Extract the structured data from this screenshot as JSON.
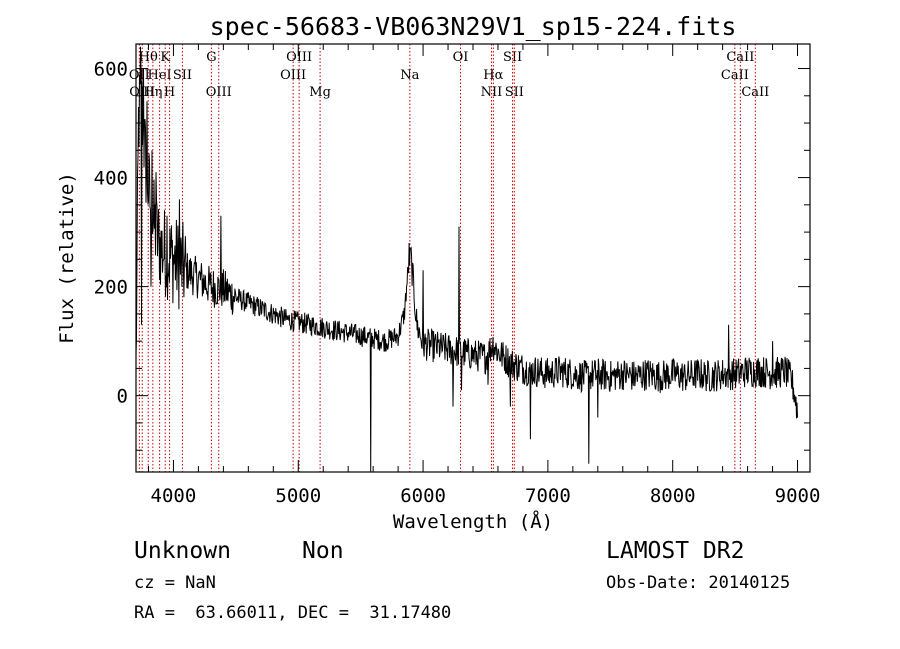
{
  "chart_data": {
    "type": "line",
    "title": "spec-56683-VB063N29V1_sp15-224.fits",
    "xlabel": "Wavelength (Å)",
    "ylabel": "Flux (relative)",
    "xlim": [
      3700,
      9100
    ],
    "ylim": [
      -140,
      645
    ],
    "x_ticks": [
      4000,
      5000,
      6000,
      7000,
      8000,
      9000
    ],
    "y_ticks": [
      0,
      200,
      400,
      600
    ],
    "grid": false,
    "line_color": "#000000",
    "marker_color": "#cc0000",
    "spectrum_anchors": {
      "x": [
        3700,
        3720,
        3740,
        3760,
        3780,
        3800,
        3830,
        3870,
        3900,
        3950,
        4000,
        4050,
        4100,
        4200,
        4300,
        4400,
        4500,
        4600,
        4700,
        4800,
        4900,
        5000,
        5100,
        5200,
        5300,
        5400,
        5500,
        5600,
        5700,
        5800,
        5850,
        5880,
        5900,
        5920,
        5950,
        6000,
        6100,
        6200,
        6300,
        6400,
        6500,
        6560,
        6600,
        6700,
        6800,
        6900,
        7000,
        7100,
        7200,
        7300,
        7400,
        7500,
        7600,
        7700,
        7800,
        7900,
        8000,
        8100,
        8200,
        8300,
        8400,
        8500,
        8600,
        8700,
        8800,
        8900,
        8950,
        8980,
        9000
      ],
      "y": [
        50,
        500,
        560,
        480,
        420,
        380,
        330,
        290,
        270,
        260,
        250,
        240,
        230,
        215,
        200,
        195,
        180,
        170,
        160,
        150,
        140,
        135,
        130,
        125,
        120,
        115,
        110,
        105,
        100,
        110,
        150,
        230,
        260,
        210,
        130,
        95,
        90,
        85,
        80,
        75,
        70,
        95,
        80,
        60,
        50,
        45,
        40,
        45,
        40,
        35,
        40,
        35,
        40,
        35,
        40,
        35,
        40,
        35,
        40,
        35,
        40,
        40,
        45,
        45,
        40,
        45,
        30,
        0,
        -30
      ]
    },
    "spectrum_spikes": [
      {
        "x": 3735,
        "y": 640
      },
      {
        "x": 3745,
        "y": 130
      },
      {
        "x": 3760,
        "y": 600
      },
      {
        "x": 3790,
        "y": 540
      },
      {
        "x": 3820,
        "y": 200
      },
      {
        "x": 3830,
        "y": 450
      },
      {
        "x": 3860,
        "y": 410
      },
      {
        "x": 3950,
        "y": 330
      },
      {
        "x": 4050,
        "y": 360
      },
      {
        "x": 4380,
        "y": 330
      },
      {
        "x": 5580,
        "y": -140
      },
      {
        "x": 5890,
        "y": 280
      },
      {
        "x": 6000,
        "y": 230
      },
      {
        "x": 6240,
        "y": -20
      },
      {
        "x": 6290,
        "y": 310
      },
      {
        "x": 6310,
        "y": 10
      },
      {
        "x": 6520,
        "y": 20
      },
      {
        "x": 6700,
        "y": -20
      },
      {
        "x": 6860,
        "y": -80
      },
      {
        "x": 7330,
        "y": -125
      },
      {
        "x": 7400,
        "y": -40
      },
      {
        "x": 8450,
        "y": 130
      },
      {
        "x": 8800,
        "y": 100
      }
    ],
    "line_markers": [
      {
        "label": "OII",
        "x": 3727,
        "row": 2
      },
      {
        "label": "Hθ",
        "x": 3798,
        "row": 1
      },
      {
        "label": "OIII",
        "x": 3750,
        "row": 3
      },
      {
        "label": "Hη",
        "x": 3835,
        "row": 3
      },
      {
        "label": "HeI",
        "x": 3889,
        "row": 2
      },
      {
        "label": "K",
        "x": 3934,
        "row": 1
      },
      {
        "label": "H",
        "x": 3969,
        "row": 3
      },
      {
        "label": "SII",
        "x": 4072,
        "row": 2
      },
      {
        "label": "G",
        "x": 4304,
        "row": 1
      },
      {
        "label": "OIII",
        "x": 4363,
        "row": 3
      },
      {
        "label": "OIII",
        "x": 4959,
        "row": 2
      },
      {
        "label": "OIII",
        "x": 5007,
        "row": 1
      },
      {
        "label": "Mg",
        "x": 5175,
        "row": 3
      },
      {
        "label": "Na",
        "x": 5894,
        "row": 2
      },
      {
        "label": "OI",
        "x": 6300,
        "row": 1
      },
      {
        "label": "NII",
        "x": 6548,
        "row": 3
      },
      {
        "label": "Hα",
        "x": 6563,
        "row": 2
      },
      {
        "label": "SII",
        "x": 6717,
        "row": 1
      },
      {
        "label": "SII",
        "x": 6731,
        "row": 3
      },
      {
        "label": "CaII",
        "x": 8498,
        "row": 2
      },
      {
        "label": "CaII",
        "x": 8542,
        "row": 1
      },
      {
        "label": "CaII",
        "x": 8662,
        "row": 3
      }
    ]
  },
  "footer": {
    "class_name": "Unknown",
    "subclass": "Non",
    "survey": "LAMOST DR2",
    "redshift": "cz = NaN",
    "obs_date": "Obs-Date: 20140125",
    "coords": "RA =  63.66011, DEC =  31.17480"
  }
}
